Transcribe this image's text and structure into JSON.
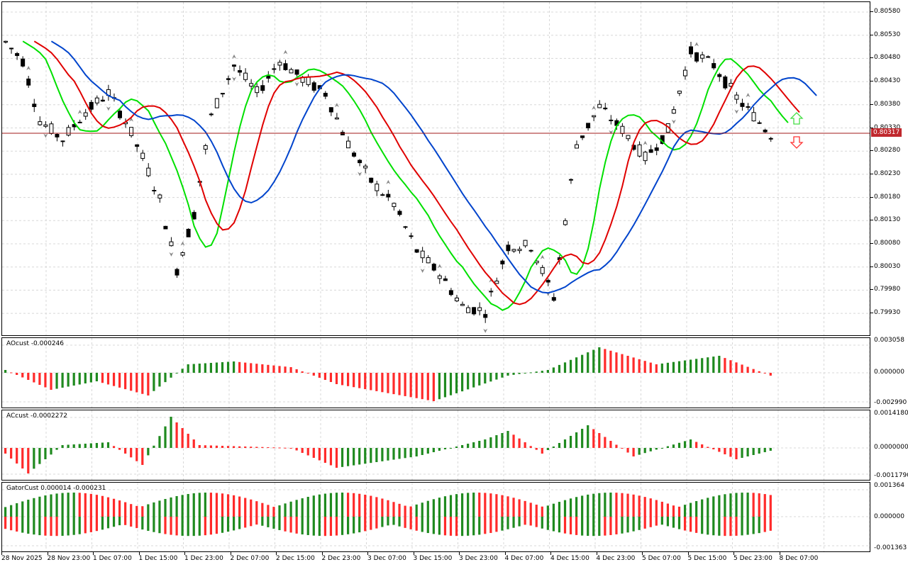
{
  "colors": {
    "bull": "#1f8a1f",
    "bear": "#ff2a2a",
    "ma_fast": "#00e000",
    "ma_mid": "#e00000",
    "ma_slow": "#0044cc",
    "price_line": "#a01818",
    "arrow_up": "#44dd44",
    "arrow_down": "#ff3333",
    "grid": "#d8d8d8"
  },
  "main": {
    "price_scale": [
      "0.80580",
      "0.80530",
      "0.80480",
      "0.80430",
      "0.80380",
      "0.80330",
      "0.80280",
      "0.80230",
      "0.80180",
      "0.80130",
      "0.80080",
      "0.80030",
      "0.79980",
      "0.79930"
    ],
    "current_price": "0.80317",
    "icons": [
      "up-arrow-icon",
      "down-arrow-icon"
    ]
  },
  "panes": {
    "ao": {
      "label": "AOcust -0.000246",
      "scale": [
        "0.003058",
        "0.000000",
        "-0.002990"
      ]
    },
    "ac": {
      "label": "ACcust -0.0002272",
      "scale": [
        "0.0014180",
        "0.0000000",
        "-0.0011790"
      ]
    },
    "gator": {
      "label": "GatorCust 0.000014 -0.000231",
      "scale": [
        "0.001364",
        "0.000000",
        "-0.001363"
      ]
    }
  },
  "time_axis": [
    "28 Nov 2025",
    "28 Nov 23:00",
    "1 Dec 07:00",
    "1 Dec 15:00",
    "1 Dec 23:00",
    "2 Dec 07:00",
    "2 Dec 15:00",
    "2 Dec 23:00",
    "3 Dec 07:00",
    "3 Dec 15:00",
    "3 Dec 23:00",
    "4 Dec 07:00",
    "4 Dec 15:00",
    "4 Dec 23:00",
    "5 Dec 07:00",
    "5 Dec 15:00",
    "5 Dec 23:00",
    "8 Dec 07:00"
  ],
  "chart_data": {
    "type": "candlestick",
    "price_axis_range": [
      0.799,
      0.806
    ],
    "series": [
      {
        "type": "candlestick",
        "points": "approx. 135 hourly candles from 28 Nov 2025 to 8 Dec 07:00"
      },
      {
        "type": "line",
        "role": "fast moving average"
      },
      {
        "type": "line",
        "role": "medium moving average"
      },
      {
        "type": "line",
        "role": "slow moving average"
      }
    ],
    "subcharts": [
      {
        "type": "bar",
        "label": "AOcust -0.000246",
        "ylim": [
          -0.00299,
          0.003058
        ]
      },
      {
        "type": "bar",
        "label": "ACcust -0.0002272",
        "ylim": [
          -0.001179,
          0.001418
        ]
      },
      {
        "type": "bar",
        "label": "GatorCust 0.000014 -0.000231",
        "ylim": [
          -0.001363,
          0.001364
        ]
      }
    ]
  }
}
